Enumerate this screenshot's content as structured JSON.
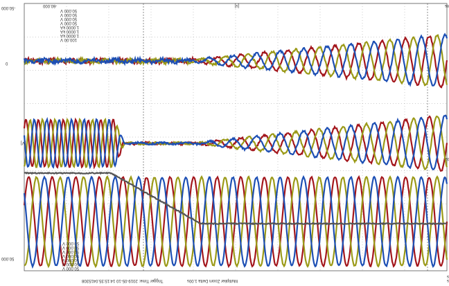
{
  "screen": {
    "top_left": "-50.000",
    "time_start": "-60.000",
    "time_unit": "[s]",
    "time_end": "150.1 ms",
    "y_zero": "0",
    "y_unit": "[V]",
    "y_bottom": "50.000",
    "x_unit_label": "[s] Seconds",
    "legend_top": [
      "50.000 V",
      "50.000 V",
      "50.000 V",
      "50.000 V",
      "1.0000 kA",
      "1.0000 kA",
      "1.0000 kA",
      "100.00 V"
    ],
    "legend_bottom": [
      "50.000 V",
      "50.000 V",
      "50.000 V",
      "50.000 V",
      "50.000 V",
      "50.000 V",
      "50.000 V"
    ],
    "trigger": "Trigger Time: 2019-05-10 14:15:35.0415308",
    "zoom": "Multiplier Zoom Delta 1.00s",
    "status": [
      "Sweeps: 10.000 s",
      "Samples: 10.000 s"
    ]
  }
}
